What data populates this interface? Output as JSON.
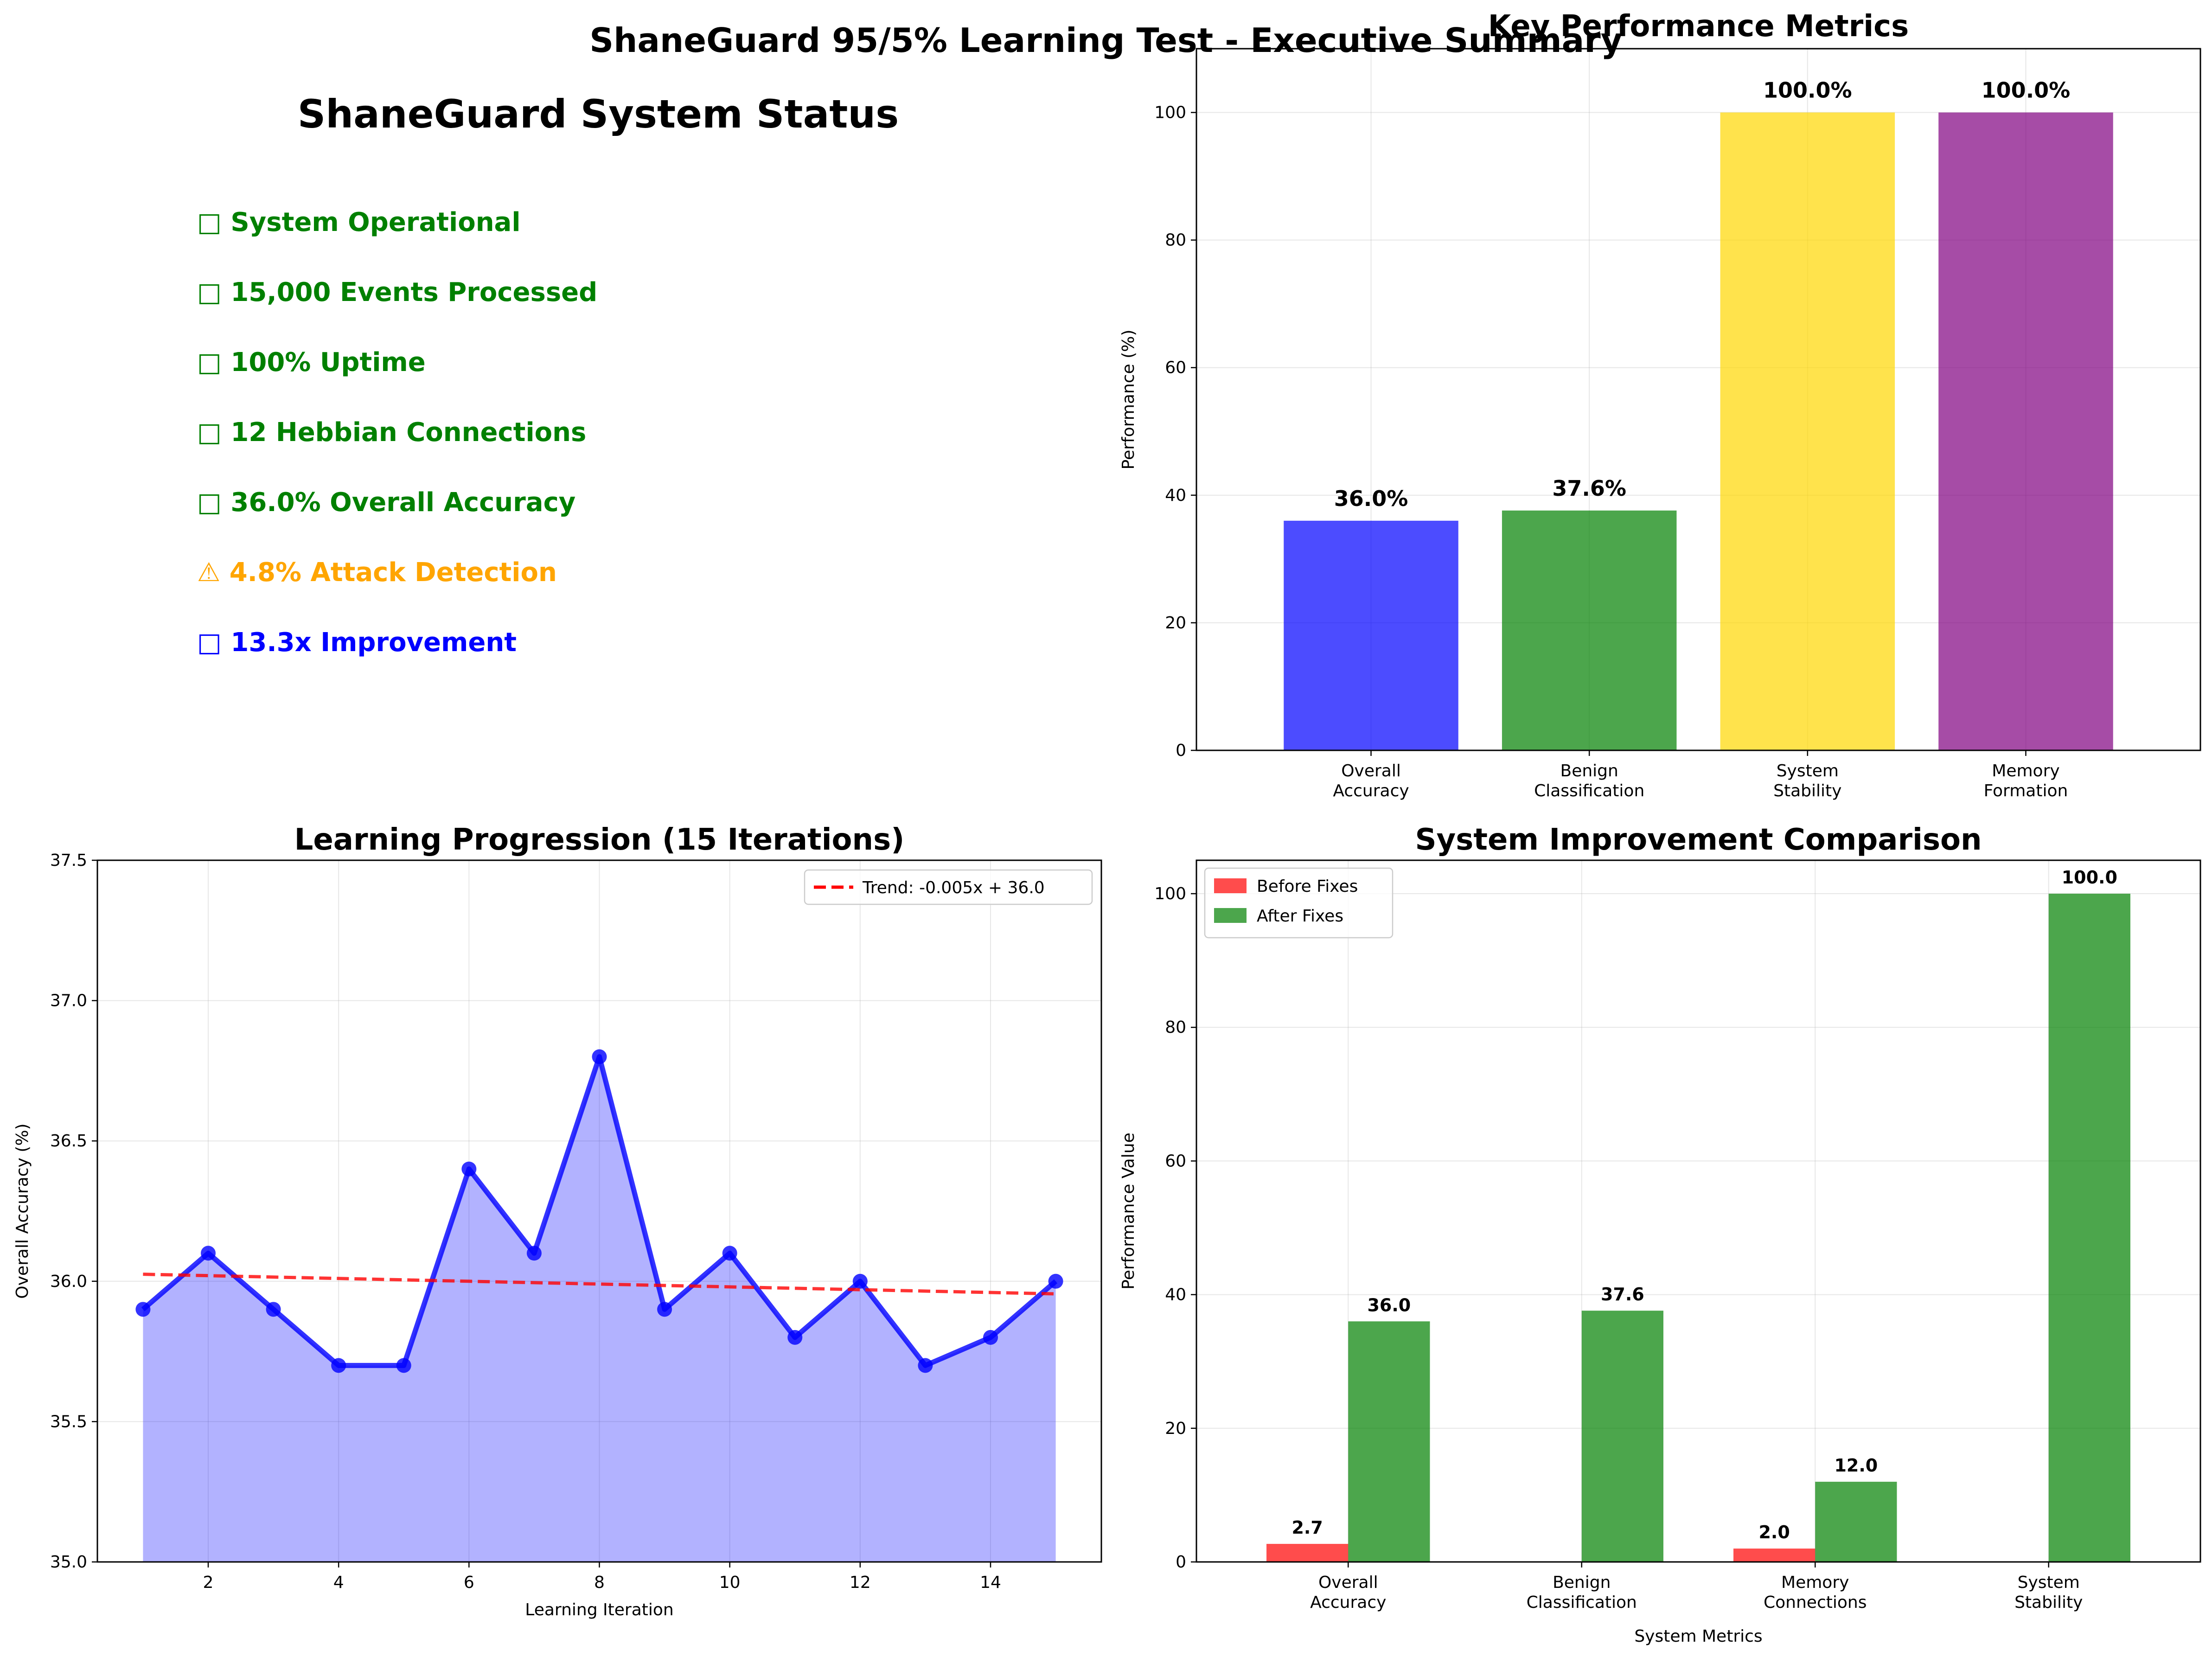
{
  "figure_title": "ShaneGuard 95/5% Learning Test - Executive Summary",
  "status_panel": {
    "title": "ShaneGuard System Status",
    "items": [
      {
        "icon": "□",
        "text": "System Operational",
        "color": "#008000"
      },
      {
        "icon": "□",
        "text": "15,000 Events Processed",
        "color": "#008000"
      },
      {
        "icon": "□",
        "text": "100% Uptime",
        "color": "#008000"
      },
      {
        "icon": "□",
        "text": "12 Hebbian Connections",
        "color": "#008000"
      },
      {
        "icon": "□",
        "text": "36.0% Overall Accuracy",
        "color": "#008000"
      },
      {
        "icon": "⚠",
        "text": "4.8% Attack Detection",
        "color": "#ffa500"
      },
      {
        "icon": "□",
        "text": "13.3x Improvement",
        "color": "#0000ff"
      }
    ]
  },
  "chart_data": [
    {
      "type": "bar",
      "title": "Key Performance Metrics",
      "xlabel": "",
      "ylabel": "Performance (%)",
      "categories": [
        [
          "Overall",
          "Accuracy"
        ],
        [
          "Benign",
          "Classification"
        ],
        [
          "System",
          "Stability"
        ],
        [
          "Memory",
          "Formation"
        ]
      ],
      "values": [
        36.0,
        37.6,
        100.0,
        100.0
      ],
      "value_labels": [
        "36.0%",
        "37.6%",
        "100.0%",
        "100.0%"
      ],
      "colors": [
        "#0000ff",
        "#008000",
        "#ffd700",
        "#800080"
      ],
      "ylim": [
        0,
        110
      ],
      "yticks": [
        0,
        20,
        40,
        60,
        80,
        100
      ],
      "grid": true
    },
    {
      "type": "line",
      "title": "Learning Progression (15 Iterations)",
      "xlabel": "Learning Iteration",
      "ylabel": "Overall Accuracy (%)",
      "x": [
        1,
        2,
        3,
        4,
        5,
        6,
        7,
        8,
        9,
        10,
        11,
        12,
        13,
        14,
        15
      ],
      "y": [
        35.9,
        36.1,
        35.9,
        35.7,
        35.7,
        36.4,
        36.1,
        36.8,
        35.9,
        36.1,
        35.8,
        36.0,
        35.7,
        35.8,
        36.0
      ],
      "fill": true,
      "trend": {
        "label": "Trend: -0.005x + 36.0",
        "slope": -0.005,
        "intercept": 36.03
      },
      "xlim": [
        0.3,
        15.7
      ],
      "ylim": [
        35.0,
        37.5
      ],
      "xticks": [
        2,
        4,
        6,
        8,
        10,
        12,
        14
      ],
      "yticks": [
        35.0,
        35.5,
        36.0,
        36.5,
        37.0,
        37.5
      ],
      "legend": "top-right",
      "grid": true
    },
    {
      "type": "bar",
      "title": "System Improvement Comparison",
      "xlabel": "System Metrics",
      "ylabel": "Performance Value",
      "categories": [
        [
          "Overall",
          "Accuracy"
        ],
        [
          "Benign",
          "Classification"
        ],
        [
          "Memory",
          "Connections"
        ],
        [
          "System",
          "Stability"
        ]
      ],
      "series": [
        {
          "name": "Before Fixes",
          "color": "#ff0000",
          "values": [
            2.7,
            0,
            2.0,
            0
          ],
          "labels": [
            "2.7",
            "",
            "2.0",
            ""
          ]
        },
        {
          "name": "After Fixes",
          "color": "#008000",
          "values": [
            36.0,
            37.6,
            12.0,
            100.0
          ],
          "labels": [
            "36.0",
            "37.6",
            "12.0",
            "100.0"
          ]
        }
      ],
      "ylim": [
        0,
        105
      ],
      "yticks": [
        0,
        20,
        40,
        60,
        80,
        100
      ],
      "legend": "top-left",
      "grid": true
    }
  ]
}
